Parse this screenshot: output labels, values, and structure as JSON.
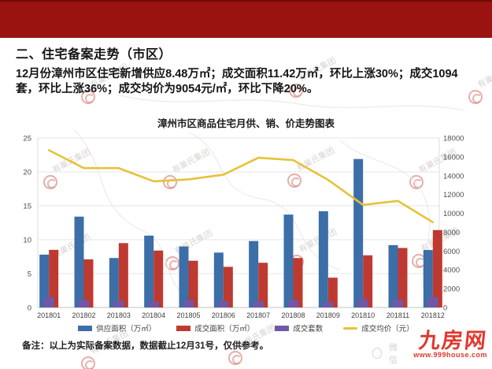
{
  "header": {
    "bar_color": "#9A1310"
  },
  "section": {
    "title": "二、住宅备案走势（市区）",
    "body": "12月份漳州市区住宅新增供应8.48万㎡；成交面积11.42万㎡，环比上涨30%；成交1094套，环比上涨36%；成交均价为9054元/㎡，环比下降20%。"
  },
  "chart_data": {
    "type": "bar",
    "title": "漳州市区商品住宅月供、销、价走势图表",
    "categories": [
      "201801",
      "201802",
      "201803",
      "201804",
      "201805",
      "201806",
      "201807",
      "201808",
      "201809",
      "201810",
      "201811",
      "201812"
    ],
    "series": [
      {
        "name": "供应面积（万㎡）",
        "type": "bar",
        "axis": "left",
        "color": "#3C6EA8",
        "values": [
          7.8,
          13.4,
          7.3,
          10.6,
          9.0,
          8.1,
          9.8,
          13.7,
          14.2,
          21.9,
          9.2,
          8.48
        ]
      },
      {
        "name": "成交面积（万㎡）",
        "type": "bar",
        "axis": "left",
        "color": "#BE3A31",
        "values": [
          8.5,
          7.1,
          9.5,
          8.4,
          6.9,
          6.0,
          6.6,
          7.3,
          4.4,
          7.7,
          8.78,
          11.42
        ]
      },
      {
        "name": "成交套数",
        "type": "bar",
        "axis": "right",
        "color": "#7058A8",
        "values": [
          1086,
          760,
          680,
          620,
          750,
          690,
          670,
          780,
          590,
          860,
          804,
          1094
        ]
      },
      {
        "name": "成交均价（元）",
        "type": "line",
        "axis": "right",
        "color": "#E6C238",
        "values": [
          16700,
          14800,
          14800,
          13400,
          13600,
          14100,
          15900,
          15650,
          13550,
          10900,
          11318,
          9054
        ]
      }
    ],
    "left_axis": {
      "min": 0,
      "max": 25,
      "tick_values": [
        0,
        5,
        10,
        15,
        20,
        25
      ],
      "tick_labels": [
        "0",
        "5",
        "10",
        "15",
        "20",
        "25"
      ]
    },
    "right_axis": {
      "min": 0,
      "max": 18000,
      "tick_values": [
        0,
        2000,
        4000,
        6000,
        8000,
        10000,
        12000,
        14000,
        16000,
        18000
      ],
      "tick_labels": [
        "0",
        "2000",
        "4000",
        "6000",
        "8000",
        "10000",
        "12000",
        "14000",
        "16000",
        "18000"
      ]
    },
    "grid": true,
    "legend_position": "bottom"
  },
  "footer": {
    "note": "备注：以上为实际备案数据，数据截止12月31号，仅供参考。"
  },
  "watermark": {
    "text": "有巢氏集团"
  },
  "brand": {
    "logo_text": "九房网",
    "url": "www.999house.com",
    "color": "#E0372C",
    "wechat_label": "微信"
  }
}
